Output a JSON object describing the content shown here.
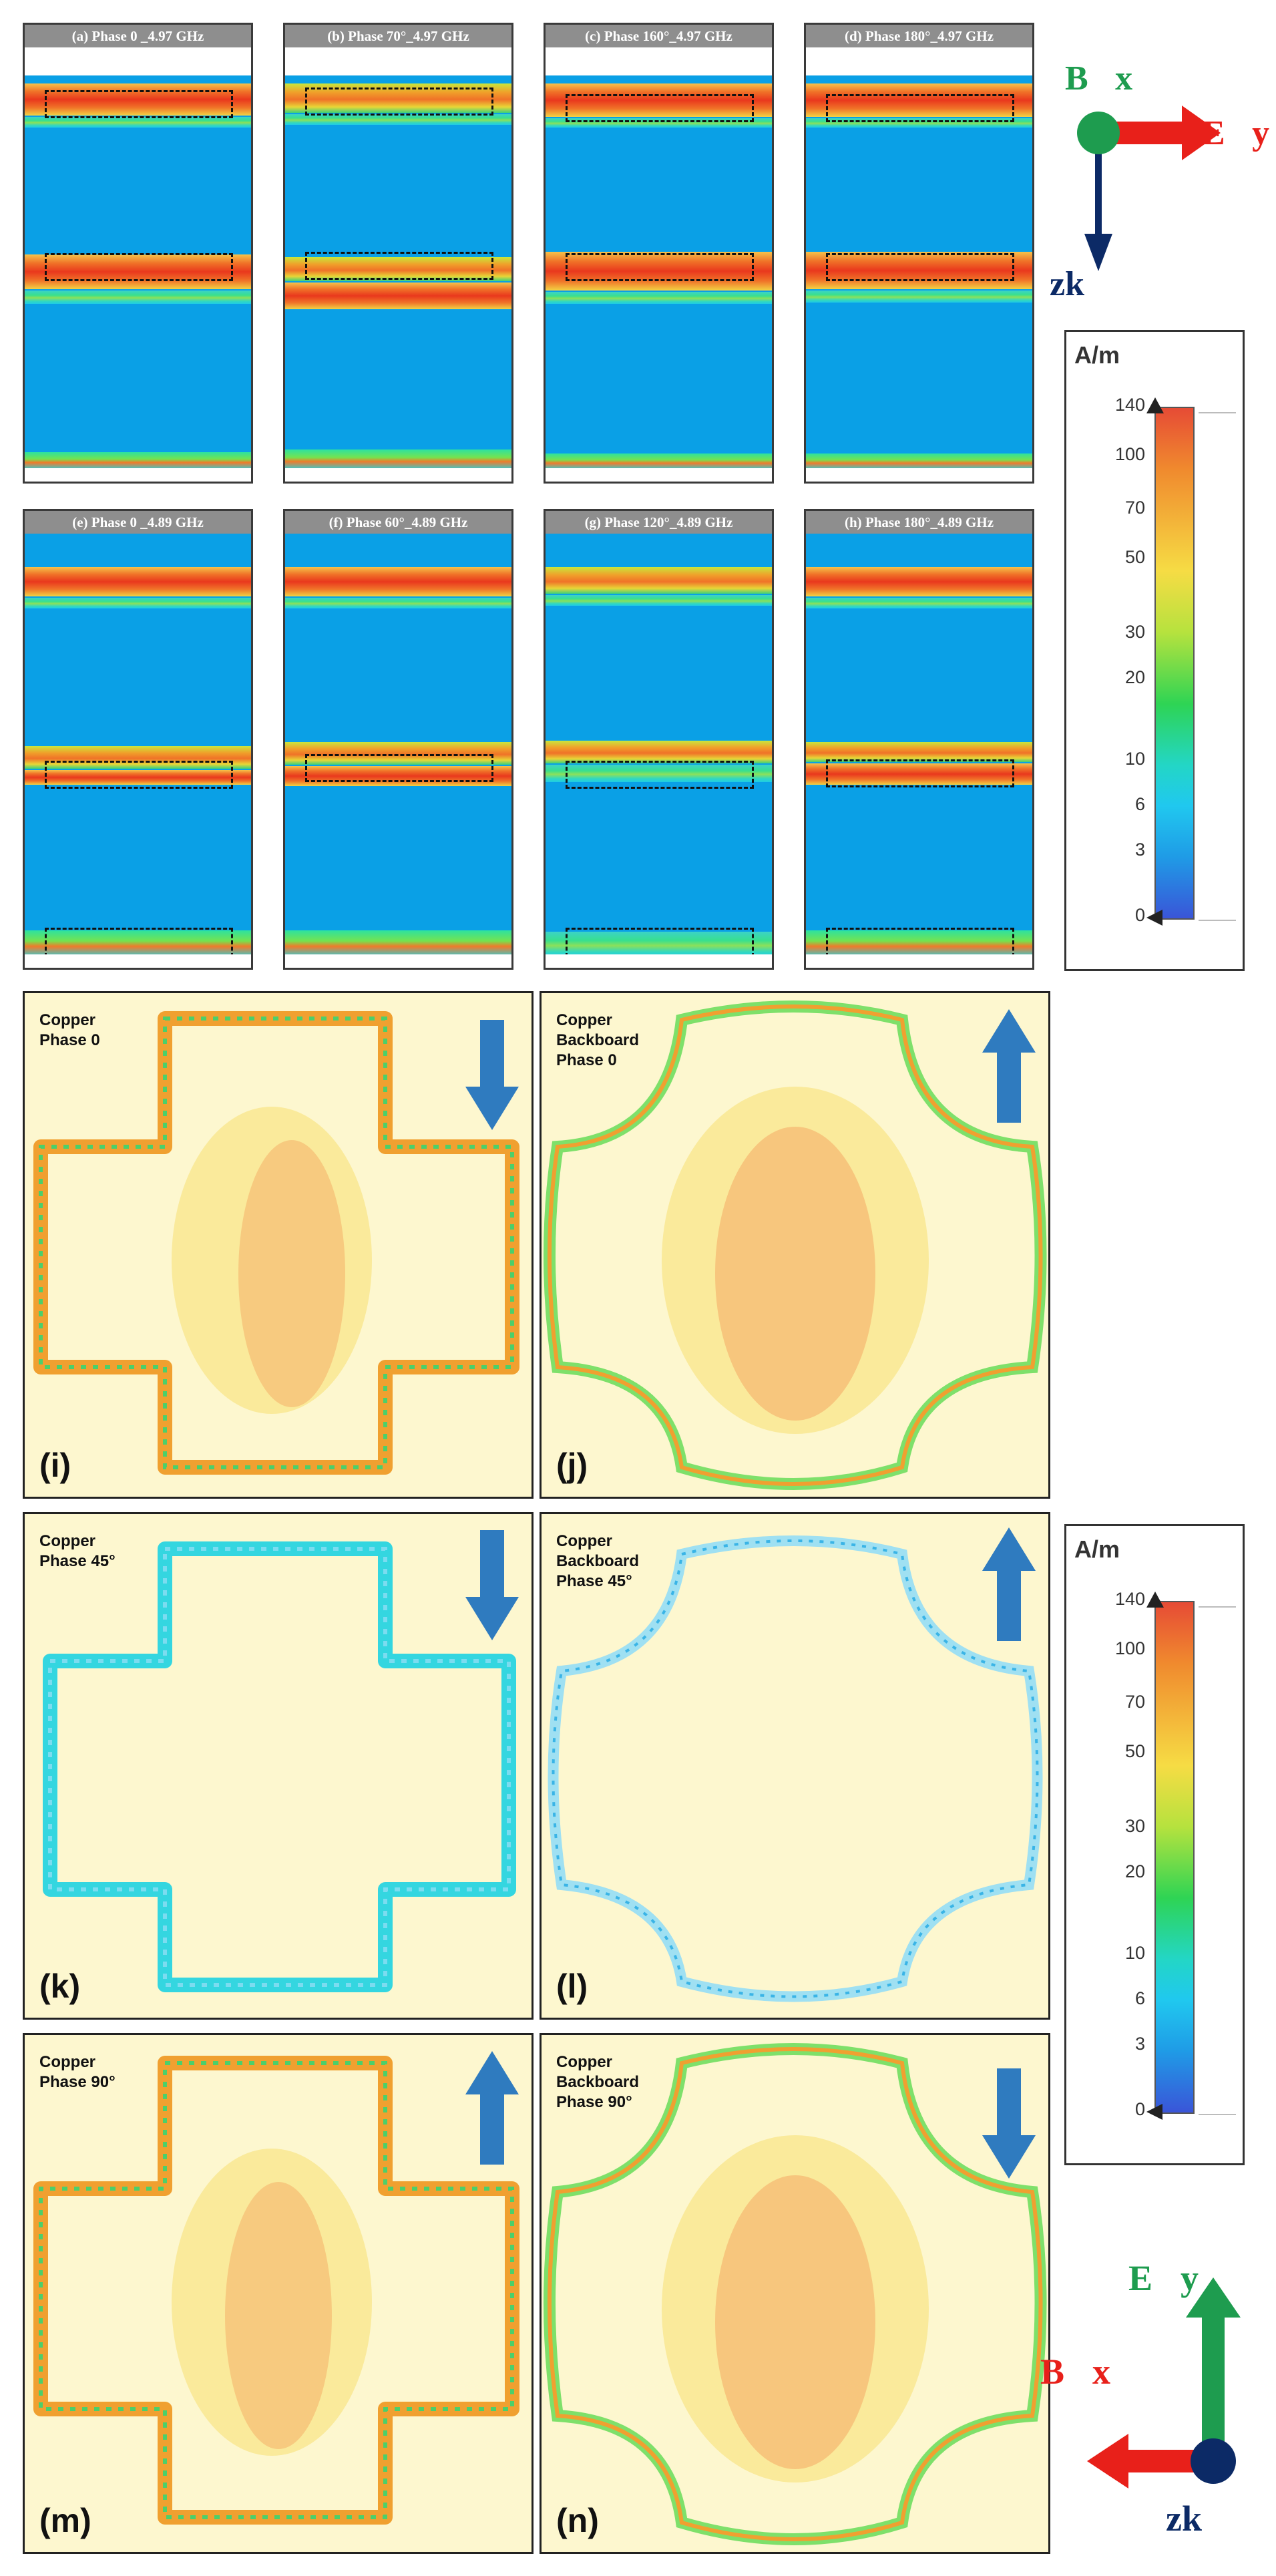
{
  "field_panels": [
    {
      "id": "a",
      "title": "(a) Phase 0 _4.97 GHz"
    },
    {
      "id": "b",
      "title": "(b) Phase 70°_4.97 GHz"
    },
    {
      "id": "c",
      "title": "(c) Phase 160°_4.97 GHz"
    },
    {
      "id": "d",
      "title": "(d) Phase 180°_4.97 GHz"
    },
    {
      "id": "e",
      "title": "(e) Phase 0 _4.89 GHz"
    },
    {
      "id": "f",
      "title": "(f) Phase 60°_4.89 GHz"
    },
    {
      "id": "g",
      "title": "(g) Phase 120°_4.89 GHz"
    },
    {
      "id": "h",
      "title": "(h) Phase 180°_4.89 GHz"
    }
  ],
  "legend": {
    "unit": "A/m",
    "ticks": [
      "140",
      "100",
      "70",
      "50",
      "30",
      "20",
      "10",
      "6",
      "3",
      "0"
    ]
  },
  "axes_top": {
    "bx": "B⃗x",
    "ey": "E⃗y",
    "zk": "zk⃗"
  },
  "axes_bottom": {
    "ey": "E⃗y",
    "bx": "B⃗x",
    "zk": "zk⃗"
  },
  "current_panels": [
    {
      "id": "i",
      "label1": "Copper",
      "label2": "Phase 0",
      "label3": "",
      "letter": "(i)",
      "arrow": "down"
    },
    {
      "id": "j",
      "label1": "Copper",
      "label2": "Backboard",
      "label3": "Phase 0",
      "letter": "(j)",
      "arrow": "up"
    },
    {
      "id": "k",
      "label1": "Copper",
      "label2": "Phase 45°",
      "label3": "",
      "letter": "(k)",
      "arrow": "down"
    },
    {
      "id": "l",
      "label1": "Copper",
      "label2": "Backboard",
      "label3": "Phase 45°",
      "letter": "(l)",
      "arrow": "up"
    },
    {
      "id": "m",
      "label1": "Copper",
      "label2": "Phase 90°",
      "label3": "",
      "letter": "(m)",
      "arrow": "up"
    },
    {
      "id": "n",
      "label1": "Copper",
      "label2": "Backboard",
      "label3": "Phase 90°",
      "letter": "(n)",
      "arrow": "down"
    }
  ],
  "colors": {
    "background_field": "#0aa0e6",
    "panel_bg": "#fdf7cf",
    "arrow_blue": "#2f7bbf",
    "axis_green": "#1e9c4f",
    "axis_red": "#e8201a",
    "axis_navy": "#0c2a66"
  }
}
